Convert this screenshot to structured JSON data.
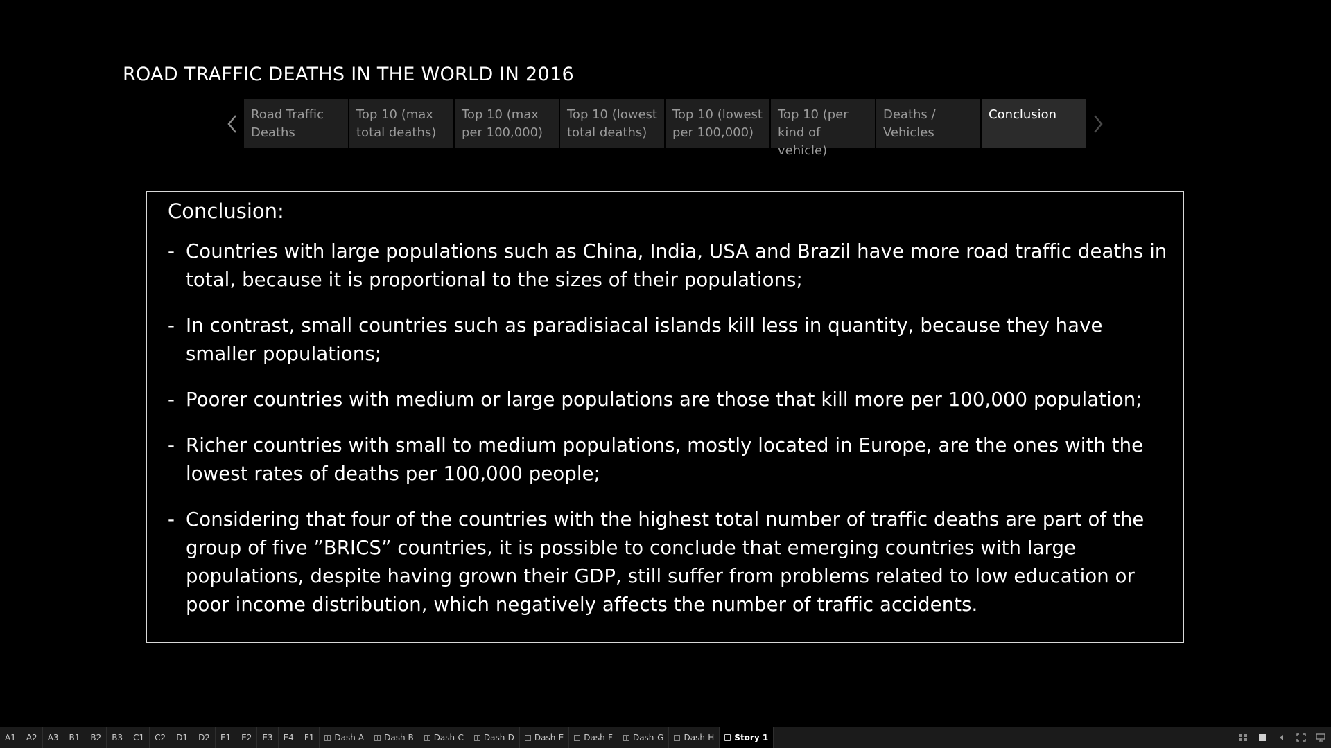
{
  "story": {
    "title": "ROAD TRAFFIC DEATHS IN THE WORLD IN 2016",
    "points": [
      {
        "label": "Road Traffic Deaths"
      },
      {
        "label": "Top 10 (max total deaths)"
      },
      {
        "label": "Top 10 (max per 100,000)"
      },
      {
        "label": "Top 10 (lowest total deaths)"
      },
      {
        "label": "Top 10 (lowest per 100,000)"
      },
      {
        "label": "Top 10 (per kind of vehicle)"
      },
      {
        "label": "Deaths / Vehicles"
      },
      {
        "label": "Conclusion"
      }
    ],
    "active_point": 7
  },
  "content": {
    "heading": "Conclusion:",
    "bullet_marker": "-",
    "bullets": [
      "Countries with large populations such as China, India, USA and Brazil have more road traffic deaths in total, because it is proportional to the sizes of their populations;",
      "In contrast, small countries such as paradisiacal islands kill less in quantity, because they have smaller populations;",
      "Poorer countries with medium or large populations are those that kill more per 100,000 population;",
      "Richer countries with small to medium populations, mostly located in Europe, are the ones with the lowest rates of deaths per 100,000 people;",
      "Considering that four of the countries with the highest total number of traffic deaths are part of the group of five ”BRICS” countries, it is possible to conclude that emerging countries with large populations, despite having grown their GDP, still suffer from problems related to low education or poor income distribution, which negatively affects the number of traffic accidents."
    ]
  },
  "tabbar": {
    "tabs": [
      {
        "label": "A1",
        "type": "sheet"
      },
      {
        "label": "A2",
        "type": "sheet"
      },
      {
        "label": "A3",
        "type": "sheet"
      },
      {
        "label": "B1",
        "type": "sheet"
      },
      {
        "label": "B2",
        "type": "sheet"
      },
      {
        "label": "B3",
        "type": "sheet"
      },
      {
        "label": "C1",
        "type": "sheet"
      },
      {
        "label": "C2",
        "type": "sheet"
      },
      {
        "label": "D1",
        "type": "sheet"
      },
      {
        "label": "D2",
        "type": "sheet"
      },
      {
        "label": "E1",
        "type": "sheet"
      },
      {
        "label": "E2",
        "type": "sheet"
      },
      {
        "label": "E3",
        "type": "sheet"
      },
      {
        "label": "E4",
        "type": "sheet"
      },
      {
        "label": "F1",
        "type": "sheet"
      },
      {
        "label": "Dash-A",
        "type": "dashboard"
      },
      {
        "label": "Dash-B",
        "type": "dashboard"
      },
      {
        "label": "Dash-C",
        "type": "dashboard"
      },
      {
        "label": "Dash-D",
        "type": "dashboard"
      },
      {
        "label": "Dash-E",
        "type": "dashboard"
      },
      {
        "label": "Dash-F",
        "type": "dashboard"
      },
      {
        "label": "Dash-G",
        "type": "dashboard"
      },
      {
        "label": "Dash-H",
        "type": "dashboard"
      },
      {
        "label": "Story 1",
        "type": "story",
        "active": true
      }
    ],
    "tools": [
      "sheet-sorter-icon",
      "filmstrip-icon",
      "first-sheet-icon",
      "fullscreen-icon",
      "presentation-icon"
    ]
  },
  "colors": {
    "background": "#000000",
    "text": "#ffffff",
    "nav_inactive_bg": "#1f1f1f",
    "nav_active_bg": "#2b2b2b",
    "nav_inactive_text": "#9a9a9a",
    "border": "#d9d9d9"
  }
}
